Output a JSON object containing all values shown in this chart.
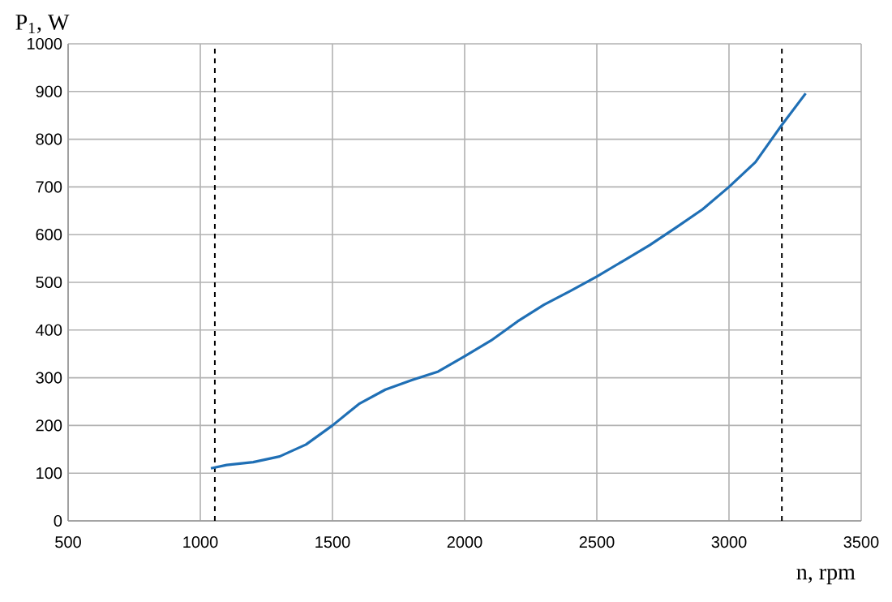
{
  "chart_data": {
    "type": "line",
    "xlabel": "n, rpm",
    "ylabel": "P$_{1}$, W",
    "xlim": [
      500,
      3500
    ],
    "xticks": [
      500,
      1000,
      1500,
      2000,
      2500,
      3000,
      3500
    ],
    "ylim": [
      0,
      1000
    ],
    "yticks": [
      0,
      100,
      200,
      300,
      400,
      500,
      600,
      700,
      800,
      900,
      1000
    ],
    "grid": true,
    "ref_lines": [
      {
        "axis": "x",
        "value": 1055,
        "color": "#000000",
        "line_style": "dashed"
      },
      {
        "axis": "x",
        "value": 3200,
        "color": "#000000",
        "line_style": "dashed"
      }
    ],
    "series": [
      {
        "color": "#1f6fb5",
        "x": [
          1040,
          1100,
          1200,
          1300,
          1400,
          1500,
          1600,
          1700,
          1800,
          1900,
          2000,
          2100,
          2200,
          2300,
          2400,
          2500,
          2600,
          2700,
          2800,
          2900,
          3000,
          3100,
          3200,
          3290
        ],
        "values": [
          110,
          117,
          123,
          135,
          160,
          200,
          245,
          275,
          295,
          313,
          345,
          378,
          418,
          453,
          482,
          512,
          545,
          578,
          615,
          653,
          700,
          752,
          830,
          896
        ]
      }
    ]
  }
}
